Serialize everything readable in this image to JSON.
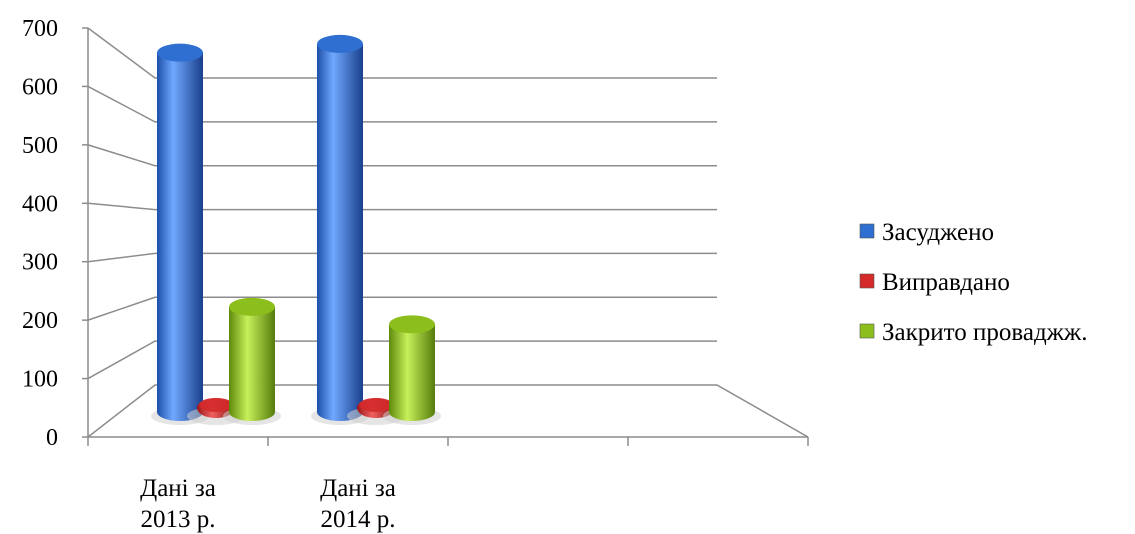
{
  "chart_data": {
    "type": "bar",
    "style": "3d-cylinder",
    "categories": [
      "Дані за 2013 р.",
      "Дані за 2014 р.",
      "",
      ""
    ],
    "category_lines": [
      [
        "Дані за",
        "2013 р."
      ],
      [
        "Дані за",
        "2014 р."
      ],
      [
        "",
        ""
      ],
      [
        "",
        ""
      ]
    ],
    "series": [
      {
        "name": "Засуджено",
        "color": "#2e6fd1",
        "values": [
          615,
          630,
          null,
          null
        ]
      },
      {
        "name": "Виправдано",
        "color": "#d42a2a",
        "values": [
          20,
          20,
          null,
          null
        ]
      },
      {
        "name": "Закрито проваджж.",
        "color": "#8cbf1c",
        "values": [
          180,
          150,
          null,
          null
        ]
      }
    ],
    "ylim": [
      0,
      700
    ],
    "yticks": [
      0,
      100,
      200,
      300,
      400,
      500,
      600,
      700
    ],
    "xlabel": "",
    "ylabel": "",
    "grid": true,
    "legend_position": "right"
  }
}
